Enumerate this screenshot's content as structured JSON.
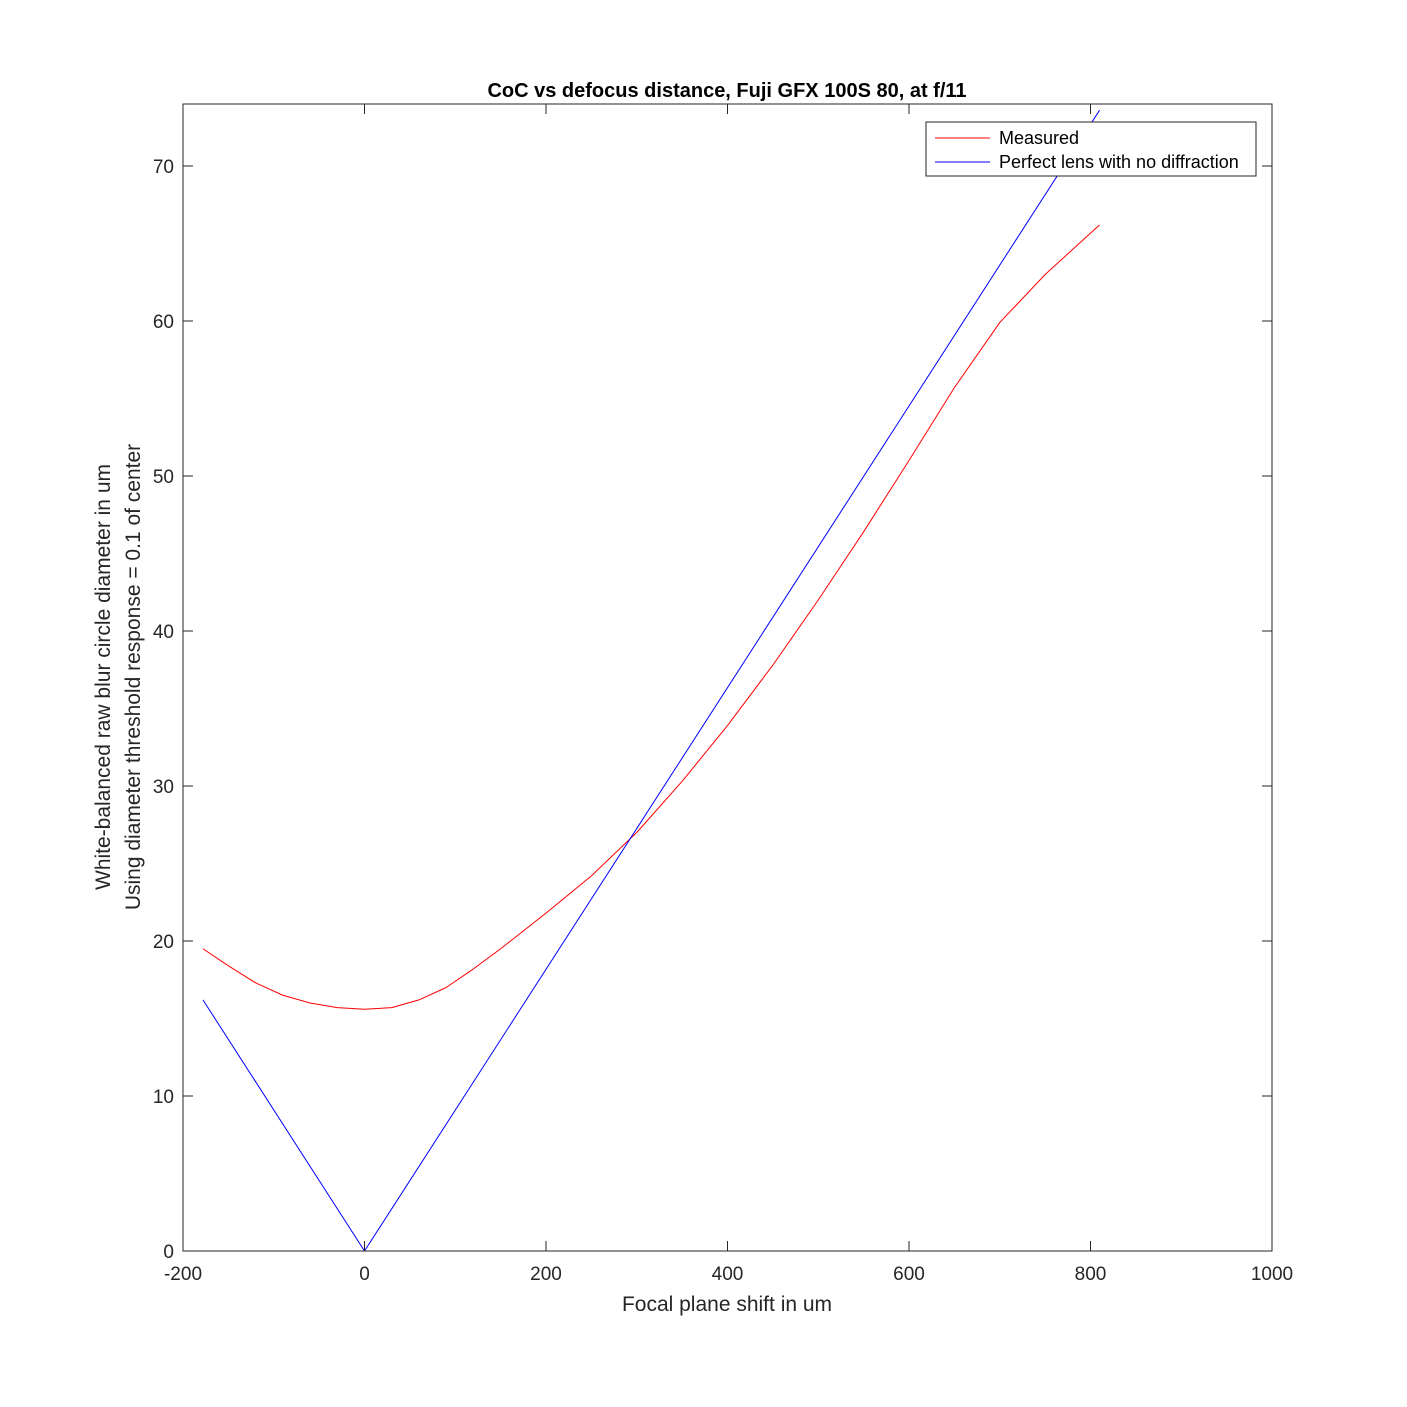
{
  "chart_data": {
    "type": "line",
    "title": "CoC vs defocus distance, Fuji GFX 100S 80, at f/11",
    "xlabel": "Focal plane shift in um",
    "ylabel": [
      "White-balanced raw blur circle diameter in um",
      "Using diameter threshold response = 0.1 of center"
    ],
    "xlim": [
      -200,
      1000
    ],
    "ylim": [
      0,
      74
    ],
    "xticks": [
      -200,
      0,
      200,
      400,
      600,
      800,
      1000
    ],
    "yticks": [
      0,
      10,
      20,
      30,
      40,
      50,
      60,
      70
    ],
    "xtick_labels": [
      "-200",
      "0",
      "200",
      "400",
      "600",
      "800",
      "1000"
    ],
    "ytick_labels": [
      "0",
      "10",
      "20",
      "30",
      "40",
      "50",
      "60",
      "70"
    ],
    "grid": false,
    "legend_position": "top-right",
    "series": [
      {
        "name": "Measured",
        "color": "#ff0000",
        "x": [
          -178,
          -150,
          -120,
          -90,
          -60,
          -30,
          0,
          30,
          60,
          90,
          120,
          150,
          200,
          250,
          300,
          350,
          400,
          450,
          500,
          550,
          600,
          650,
          700,
          750,
          810
        ],
        "y": [
          19.5,
          18.4,
          17.3,
          16.5,
          16.0,
          15.7,
          15.6,
          15.7,
          16.2,
          17.0,
          18.2,
          19.5,
          21.8,
          24.2,
          27.0,
          30.3,
          33.9,
          37.8,
          42.0,
          46.4,
          51.0,
          55.7,
          59.9,
          63.0,
          66.2
        ]
      },
      {
        "name": "Perfect lens with no diffraction",
        "color": "#0000ff",
        "x": [
          -178,
          0,
          810
        ],
        "y": [
          16.2,
          0,
          73.6
        ]
      }
    ]
  }
}
